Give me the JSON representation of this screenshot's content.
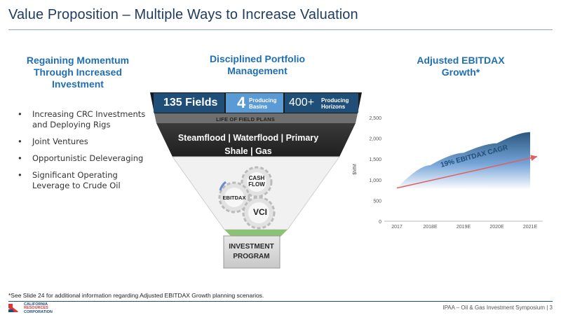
{
  "title": "Value Proposition – Multiple Ways to Increase Valuation",
  "left": {
    "heading": "Regaining Momentum Through Increased Investment",
    "bullets": [
      "Increasing CRC Investments and Deploying Rigs",
      "Joint Ventures",
      "Opportunistic Deleveraging",
      "Significant Operating Leverage to Crude Oil"
    ]
  },
  "middle": {
    "heading": "Disciplined Portfolio Management",
    "fields": "135 Fields",
    "basins_num": "4",
    "basins_label": "Producing Basins",
    "horizons_num": "400+",
    "horizons_label": "Producing Horizons",
    "life_plans": "LIFE OF FIELD PLANS",
    "methods_line1": "Steamflood | Waterflood | Primary",
    "methods_line2": "Shale | Gas",
    "gear_cashflow": "CASH FLOW",
    "gear_ebitdax": "EBITDAX",
    "gear_vci": "VCI",
    "investment": "INVESTMENT PROGRAM"
  },
  "right": {
    "heading": "Adjusted EBITDAX Growth*"
  },
  "chart_data": {
    "type": "area",
    "title": "",
    "xlabel": "",
    "ylabel": "$MM",
    "categories": [
      "2017",
      "2018E",
      "2019E",
      "2020E",
      "2021E"
    ],
    "ylim": [
      0,
      2500
    ],
    "yticks": [
      0,
      500,
      1000,
      1500,
      2000,
      2500
    ],
    "band": {
      "lower": [
        800,
        790,
        780,
        770,
        760
      ],
      "upper": [
        800,
        1350,
        1650,
        1880,
        2150
      ]
    },
    "cagr_arrow": {
      "start": 800,
      "end": 1560
    },
    "annotation": "19% EBITDAX CAGR",
    "colors": {
      "band_top": "#1f4e79",
      "band_fade": "#ffffff",
      "arrow": "#e06060",
      "axis": "#bbbbbb"
    }
  },
  "footnote": "*See Slide 24 for additional information regarding Adjusted EBITDAX Growth planning scenarios.",
  "footer": "IPAA – Oil & Gas Investment Symposium | 3",
  "logo": {
    "line1": "CALIFORNIA",
    "line2": "RESOURCES",
    "line3": "CORPORATION",
    "icon": "california-state-icon"
  },
  "colors": {
    "title": "#1f3a5f",
    "accent": "#1f6fb2",
    "navy": "#1f4e79",
    "light_blue": "#5b9bd5"
  }
}
